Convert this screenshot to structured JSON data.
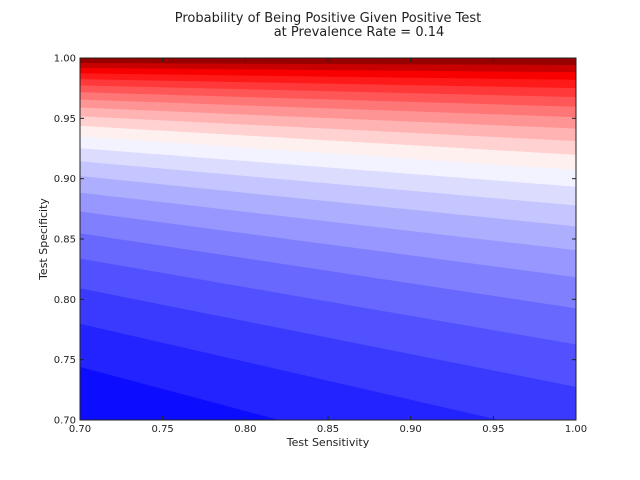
{
  "chart_data": {
    "type": "heatmap",
    "subtype": "filled-contour",
    "title_line1": "Probability of Being Positive Given Positive Test",
    "title_line2": "at Prevalence Rate = 0.14",
    "xlabel": "Test Sensitivity",
    "ylabel": "Test Specificity",
    "xlim": [
      0.7,
      1.0
    ],
    "ylim": [
      0.7,
      1.0
    ],
    "prevalence": 0.14,
    "x_ticks": [
      "0.70",
      "0.75",
      "0.80",
      "0.85",
      "0.90",
      "0.95",
      "1.00"
    ],
    "y_ticks": [
      "0.70",
      "0.75",
      "0.80",
      "0.85",
      "0.90",
      "0.95",
      "1.00"
    ],
    "colormap": "bwr",
    "color_low": "#0000ff",
    "color_mid": "#ffffff",
    "color_high": "#800000",
    "grid": false
  }
}
